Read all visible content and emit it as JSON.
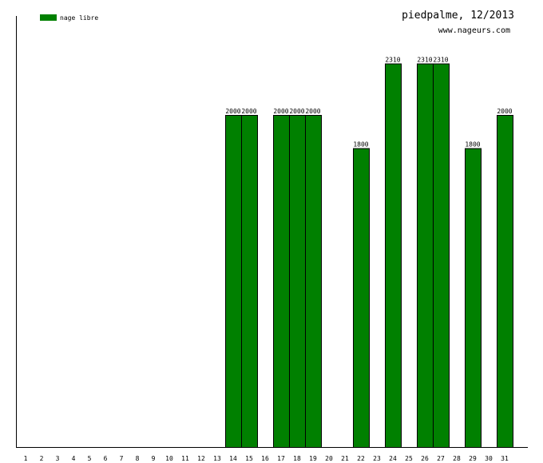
{
  "chart_data": {
    "type": "bar",
    "title": "piedpalme, 12/2013",
    "subtitle": "www.nageurs.com",
    "xlabel": "",
    "ylabel": "",
    "ylim": [
      0,
      2600
    ],
    "grid": false,
    "legend_position": "top-left",
    "categories": [
      "1",
      "2",
      "3",
      "4",
      "5",
      "6",
      "7",
      "8",
      "9",
      "10",
      "11",
      "12",
      "13",
      "14",
      "15",
      "16",
      "17",
      "18",
      "19",
      "20",
      "21",
      "22",
      "23",
      "24",
      "25",
      "26",
      "27",
      "28",
      "29",
      "30",
      "31"
    ],
    "series": [
      {
        "name": "nage libre",
        "color": "#008000",
        "values": [
          0,
          0,
          0,
          0,
          0,
          0,
          0,
          0,
          0,
          0,
          0,
          0,
          0,
          2000,
          2000,
          0,
          2000,
          2000,
          2000,
          0,
          0,
          1800,
          0,
          2310,
          0,
          2310,
          2310,
          0,
          1800,
          0,
          2000
        ]
      }
    ]
  }
}
